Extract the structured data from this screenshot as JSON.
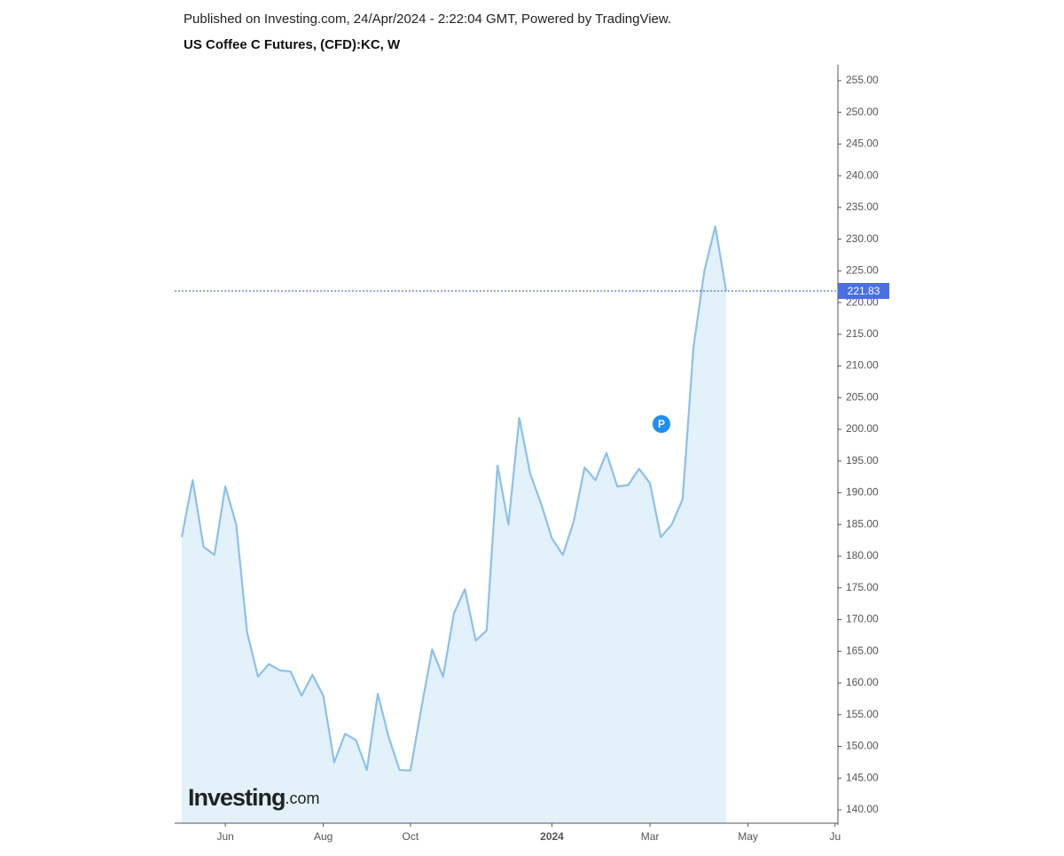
{
  "chart_data": {
    "type": "area",
    "published": "Published on Investing.com, 24/Apr/2024 - 2:22:04 GMT, Powered by TradingView.",
    "title": "US Coffee C Futures, (CFD):KC, W",
    "color": "#8cc0ec",
    "fill": "#e3f1fa",
    "categories": [
      null,
      null,
      null,
      null,
      "Jun",
      null,
      null,
      null,
      null,
      null,
      null,
      null,
      null,
      "Aug",
      null,
      null,
      null,
      null,
      null,
      null,
      null,
      "Oct",
      null,
      null,
      null,
      null,
      null,
      null,
      null,
      null,
      null,
      null,
      null,
      null,
      "2024",
      null,
      null,
      null,
      null,
      null,
      null,
      null,
      null,
      "Mar",
      null,
      null,
      null,
      null,
      null,
      null,
      null,
      null,
      "May",
      null,
      null,
      null,
      null,
      null,
      null,
      null,
      "Ju"
    ],
    "values": [
      183,
      192,
      181.5,
      180.2,
      191,
      185,
      168,
      161,
      163,
      162,
      161.8,
      158,
      161.3,
      158,
      147.5,
      152,
      151,
      146.3,
      158.3,
      151.5,
      146.3,
      146.2,
      156,
      165.3,
      161,
      171,
      174.8,
      166.7,
      168.3,
      194.3,
      185,
      201.8,
      193,
      188.3,
      182.8,
      180.2,
      185.5,
      194,
      192,
      196.3,
      191,
      191.2,
      193.8,
      191.5,
      183,
      185,
      189,
      213,
      225,
      232,
      221.83,
      null,
      null,
      null,
      null,
      null,
      null,
      null,
      null,
      null,
      null
    ],
    "ylim": [
      137.9,
      257.5
    ],
    "yticks": [
      {
        "value": 140,
        "label": "140.00"
      },
      {
        "value": 145,
        "label": "145.00"
      },
      {
        "value": 150,
        "label": "150.00"
      },
      {
        "value": 155,
        "label": "155.00"
      },
      {
        "value": 160,
        "label": "160.00"
      },
      {
        "value": 165,
        "label": "165.00"
      },
      {
        "value": 170,
        "label": "170.00"
      },
      {
        "value": 175,
        "label": "175.00"
      },
      {
        "value": 180,
        "label": "180.00"
      },
      {
        "value": 185,
        "label": "185.00"
      },
      {
        "value": 190,
        "label": "190.00"
      },
      {
        "value": 195,
        "label": "195.00"
      },
      {
        "value": 200,
        "label": "200.00"
      },
      {
        "value": 205,
        "label": "205.00"
      },
      {
        "value": 210,
        "label": "210.00"
      },
      {
        "value": 215,
        "label": "215.00"
      },
      {
        "value": 220,
        "label": "220.00"
      },
      {
        "value": 225,
        "label": "225.00"
      },
      {
        "value": 230,
        "label": "230.00"
      },
      {
        "value": 235,
        "label": "235.00"
      },
      {
        "value": 240,
        "label": "240.00"
      },
      {
        "value": 245,
        "label": "245.00"
      },
      {
        "value": 250,
        "label": "250.00"
      },
      {
        "value": 255,
        "label": "255.00"
      }
    ],
    "annotation": "P",
    "watermark": {
      "main": "Investing",
      "suffix": ".com"
    }
  }
}
